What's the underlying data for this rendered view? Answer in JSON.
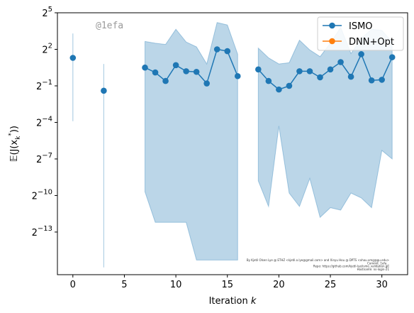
{
  "chart_data": {
    "type": "line",
    "xlabel": "Iteration k",
    "ylabel": "𝔼(J(x_k^*))",
    "x_ticks": [
      0,
      5,
      10,
      15,
      20,
      25,
      30
    ],
    "y_ticks": [
      {
        "exp": 5,
        "label": "2",
        "sup": "5"
      },
      {
        "exp": 2,
        "label": "2",
        "sup": "2"
      },
      {
        "exp": -1,
        "label": "2",
        "sup": "−1"
      },
      {
        "exp": -4,
        "label": "2",
        "sup": "−4"
      },
      {
        "exp": -7,
        "label": "2",
        "sup": "−7"
      },
      {
        "exp": -10,
        "label": "2",
        "sup": "−10"
      },
      {
        "exp": -13,
        "label": "2",
        "sup": "−13"
      }
    ],
    "xlim": [
      -1.5,
      32.5
    ],
    "ylim_log2": [
      -16.5,
      5
    ],
    "y_scale": "log2",
    "legend_placement": "top-right",
    "watermark": "@1efa",
    "credit_lines": [
      "By Kjetil Olsen Lye @ ETHZ <kjetil.o.lye@gmail.com> and Xinyu Hou @ DPTS <xhou.xmg@gu.edu>",
      "Commit: 1efa...",
      "Repo: https://github.com/kjetil-lye/ismo_validation.git",
      "Hostname: ns-login-21"
    ],
    "series": [
      {
        "name": "ISMO",
        "color": "#1f77b4",
        "x": [
          0,
          3,
          7,
          8,
          9,
          10,
          11,
          12,
          13,
          14,
          15,
          16,
          18,
          19,
          20,
          21,
          22,
          23,
          24,
          25,
          26,
          27,
          28,
          29,
          30,
          31
        ],
        "y_log2": [
          1.3,
          -1.4,
          0.5,
          0.1,
          -0.6,
          0.7,
          0.2,
          0.15,
          -0.8,
          2.0,
          1.85,
          -0.2,
          0.35,
          -0.6,
          -1.3,
          -1.0,
          0.2,
          0.2,
          -0.3,
          0.35,
          0.95,
          -0.25,
          1.6,
          -0.55,
          -0.5,
          1.35
        ],
        "band_low_log2": [
          -3.9,
          -15.9,
          -9.7,
          -12.2,
          -12.2,
          -12.2,
          -12.2,
          -15.3,
          -15.3,
          -15.3,
          -15.3,
          -15.3,
          -8.8,
          -10.9,
          -4.3,
          -9.8,
          -10.9,
          -8.6,
          -11.8,
          -11.0,
          -11.2,
          -9.8,
          -10.2,
          -11.0,
          -6.3,
          -7.0
        ],
        "band_high_log2": [
          3.3,
          0.8,
          2.65,
          2.5,
          2.4,
          3.65,
          2.6,
          2.2,
          0.8,
          4.2,
          4.0,
          1.6,
          2.1,
          1.3,
          0.8,
          0.9,
          2.75,
          1.95,
          1.4,
          2.5,
          3.8,
          1.65,
          2.9,
          3.65,
          3.55,
          2.6
        ]
      },
      {
        "name": "DNN+Opt",
        "color": "#ff7f0e",
        "x": [],
        "y_log2": []
      }
    ]
  }
}
